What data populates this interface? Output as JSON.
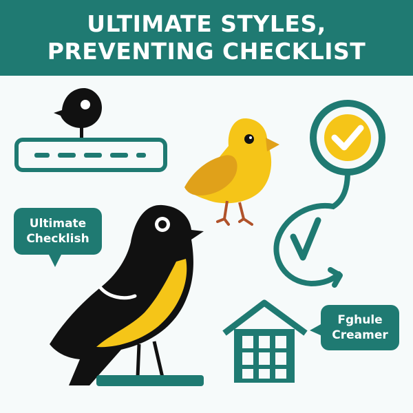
{
  "banner": {
    "line1": "ULTIMATE STYLES,",
    "line2": "PREVENTING CHECKLIST"
  },
  "bubbles": {
    "left": {
      "line1": "Ultimate",
      "line2": "Checklish"
    },
    "right": {
      "line1": "Fghule",
      "line2": "Creamer"
    }
  },
  "colors": {
    "teal": "#1f7a72",
    "yellow": "#f5c518",
    "black": "#111111",
    "background": "#f6fafa"
  },
  "icons": [
    "bird-on-bar-icon",
    "yellow-bird-icon",
    "checkmark-circle-icon",
    "circular-arrow-icon",
    "black-bird-icon",
    "birdhouse-icon"
  ]
}
